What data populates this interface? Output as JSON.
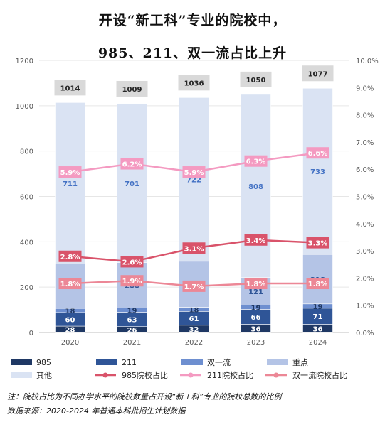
{
  "title": [
    "开设“新工科”专业的院校中，",
    "985、211、双一流占比上升"
  ],
  "notes": [
    "注：院校占比为不同办学水平的院校数量占开设“新工科”专业的院校总数的比例",
    "数据来源：2020-2024 年普通本科批招生计划数据"
  ],
  "chart_data": {
    "type": "bar",
    "stacked": true,
    "categories": [
      "2020",
      "2021",
      "2022",
      "2023",
      "2024"
    ],
    "y_left": {
      "min": 0,
      "max": 1200,
      "ticks": [
        0,
        200,
        400,
        600,
        800,
        1000,
        1200
      ]
    },
    "y_right": {
      "min": 0,
      "max": 0.1,
      "ticks": [
        "0.0%",
        "1.0%",
        "2.0%",
        "3.0%",
        "4.0%",
        "5.0%",
        "6.0%",
        "7.0%",
        "8.0%",
        "9.0%",
        "10.0%"
      ]
    },
    "totals": [
      1014,
      1009,
      1036,
      1050,
      1077
    ],
    "bar_series": [
      {
        "name": "985",
        "color": "#1f3864",
        "label_color": "#ffffff",
        "values": [
          28,
          26,
          32,
          36,
          36
        ]
      },
      {
        "name": "211",
        "color": "#2f5597",
        "label_color": "#ffffff",
        "values": [
          60,
          63,
          61,
          66,
          71
        ]
      },
      {
        "name": "双一流",
        "color": "#6e8fd0",
        "label_color": "#1f3864",
        "values": [
          18,
          19,
          18,
          19,
          19
        ]
      },
      {
        "name": "重点",
        "color": "#b4c4e6",
        "label_color": "#2f5597",
        "values": [
          197,
          200,
          203,
          121,
          218
        ]
      },
      {
        "name": "其他",
        "color": "#dae3f3",
        "label_color": "#4472c4",
        "values": [
          711,
          701,
          722,
          808,
          733
        ]
      }
    ],
    "line_series": [
      {
        "name": "985院校占比",
        "color": "#d9536a",
        "values": [
          2.8,
          2.6,
          3.1,
          3.4,
          3.3
        ],
        "labels": [
          "2.8%",
          "2.6%",
          "3.1%",
          "3.4%",
          "3.3%"
        ]
      },
      {
        "name": "211院校占比",
        "color": "#f49ac1",
        "values": [
          5.9,
          6.2,
          5.9,
          6.3,
          6.6
        ],
        "labels": [
          "5.9%",
          "6.2%",
          "5.9%",
          "6.3%",
          "6.6%"
        ]
      },
      {
        "name": "双一流院校占比",
        "color": "#ec8796",
        "values": [
          1.8,
          1.9,
          1.7,
          1.8,
          1.8
        ],
        "labels": [
          "1.8%",
          "1.9%",
          "1.7%",
          "1.8%",
          "1.8%"
        ]
      }
    ],
    "legend_order": [
      "985",
      "211",
      "双一流",
      "重点",
      "其他",
      "985院校占比",
      "211院校占比",
      "双一流院校占比"
    ]
  }
}
